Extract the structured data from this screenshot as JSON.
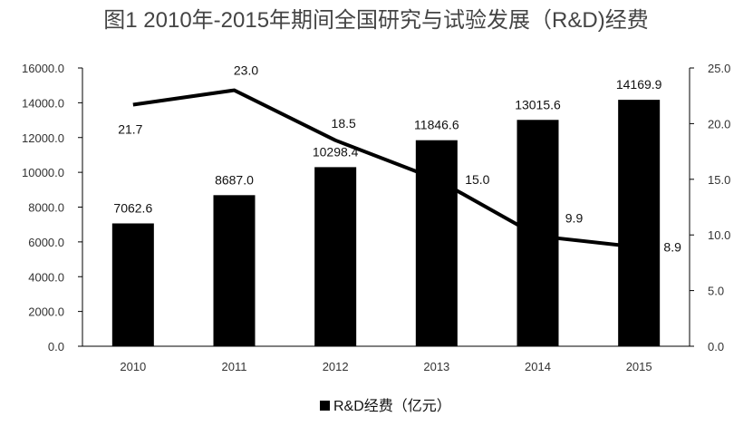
{
  "chart_data": {
    "type": "bar+line",
    "title": "图1 2010年-2015年期间全国研究与试验发展（R&D)经费",
    "categories": [
      "2010",
      "2011",
      "2012",
      "2013",
      "2014",
      "2015"
    ],
    "series": [
      {
        "name": "R&D经费（亿元）",
        "type": "bar",
        "axis": "left",
        "color": "#000000",
        "values": [
          7062.6,
          8687.0,
          10298.4,
          11846.6,
          13015.6,
          14169.9
        ],
        "labels": [
          "7062.6",
          "8687.0",
          "10298.4",
          "11846.6",
          "13015.6",
          "14169.9"
        ]
      },
      {
        "type": "line",
        "axis": "right",
        "color": "#000000",
        "values": [
          21.7,
          23.0,
          18.5,
          15.0,
          9.9,
          8.9
        ],
        "labels": [
          "21.7",
          "23.0",
          "18.5",
          "15.0",
          "9.9",
          "8.9"
        ]
      }
    ],
    "y_left": {
      "range": [
        0,
        16000
      ],
      "ticks": [
        "0.0",
        "2000.0",
        "4000.0",
        "6000.0",
        "8000.0",
        "10000.0",
        "12000.0",
        "14000.0",
        "16000.0"
      ]
    },
    "y_right": {
      "range": [
        0,
        25
      ],
      "ticks": [
        "0.0",
        "5.0",
        "10.0",
        "15.0",
        "20.0",
        "25.0"
      ]
    },
    "grid": false,
    "legend": {
      "placement": "bottom",
      "entries": [
        "R&D经费（亿元）"
      ]
    }
  }
}
